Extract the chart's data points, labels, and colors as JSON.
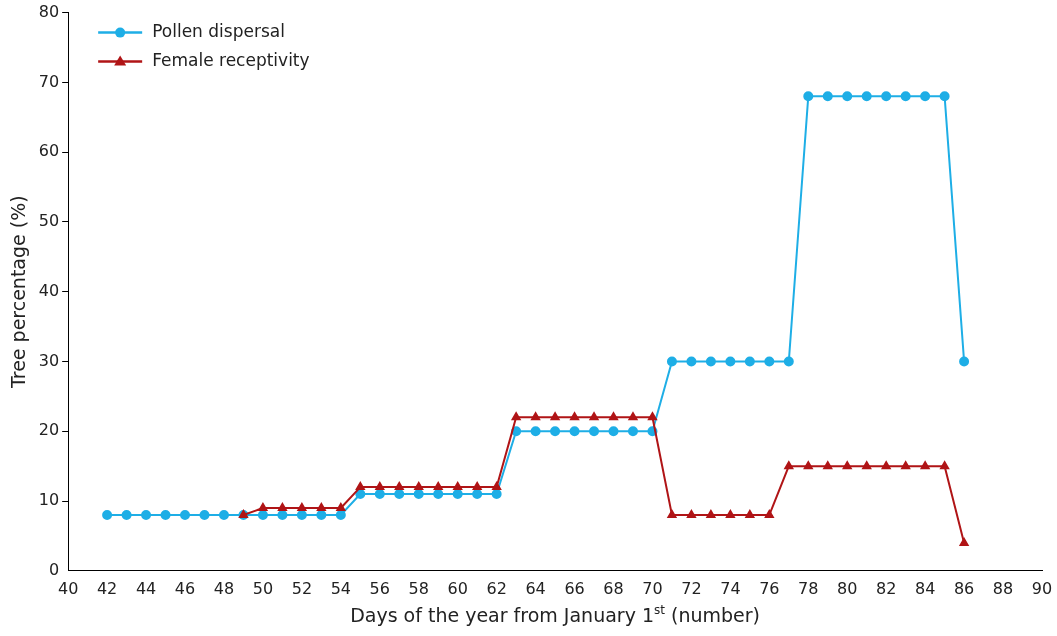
{
  "chart_data": {
    "type": "line",
    "xlabel": "Days of the year from January 1$^{st}$ (number)",
    "ylabel": "Tree percentage (%)",
    "xlim": [
      40,
      90
    ],
    "xticks": [
      40,
      42,
      44,
      46,
      48,
      50,
      52,
      54,
      56,
      58,
      60,
      62,
      64,
      66,
      68,
      70,
      72,
      74,
      76,
      78,
      80,
      82,
      84,
      86,
      88,
      90
    ],
    "ylim": [
      0,
      80
    ],
    "yticks": [
      0,
      10,
      20,
      30,
      40,
      50,
      60,
      70,
      80
    ],
    "grid": false,
    "legend": "top left",
    "line_style": "solid",
    "series": [
      {
        "name": "Pollen dispersal",
        "color": "#1eaee6",
        "marker": "circle",
        "x": [
          42,
          43,
          44,
          45,
          46,
          47,
          48,
          49,
          50,
          51,
          52,
          53,
          54,
          55,
          56,
          57,
          58,
          59,
          60,
          61,
          62,
          63,
          64,
          65,
          66,
          67,
          68,
          69,
          70,
          71,
          72,
          73,
          74,
          75,
          76,
          77,
          78,
          79,
          80,
          81,
          82,
          83,
          84,
          85,
          86
        ],
        "values": [
          8,
          8,
          8,
          8,
          8,
          8,
          8,
          8,
          8,
          8,
          8,
          8,
          8,
          11,
          11,
          11,
          11,
          11,
          11,
          11,
          11,
          20,
          20,
          20,
          20,
          20,
          20,
          20,
          20,
          30,
          30,
          30,
          30,
          30,
          30,
          30,
          68,
          68,
          68,
          68,
          68,
          68,
          68,
          68,
          30
        ]
      },
      {
        "name": "Female receptivity",
        "color": "#b01416",
        "marker": "triangle",
        "x": [
          49,
          50,
          51,
          52,
          53,
          54,
          55,
          56,
          57,
          58,
          59,
          60,
          61,
          62,
          63,
          64,
          65,
          66,
          67,
          68,
          69,
          70,
          71,
          72,
          73,
          74,
          75,
          76,
          77,
          78,
          79,
          80,
          81,
          82,
          83,
          84,
          85,
          86
        ],
        "values": [
          8,
          9,
          9,
          9,
          9,
          9,
          12,
          12,
          12,
          12,
          12,
          12,
          12,
          12,
          22,
          22,
          22,
          22,
          22,
          22,
          22,
          22,
          8,
          8,
          8,
          8,
          8,
          8,
          15,
          15,
          15,
          15,
          15,
          15,
          15,
          15,
          15,
          4
        ]
      }
    ]
  }
}
